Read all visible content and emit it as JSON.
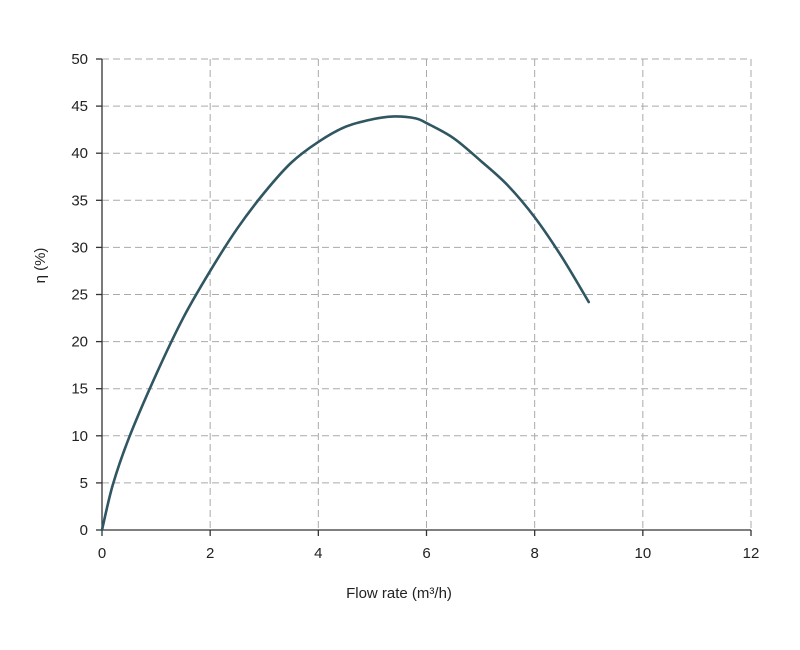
{
  "chart_data": {
    "type": "line",
    "title": "",
    "xlabel": "Flow rate (m³/h)",
    "ylabel": "η (%)",
    "xlim": [
      0,
      12
    ],
    "ylim": [
      0,
      50
    ],
    "xticks": [
      "0",
      "2",
      "4",
      "6",
      "8",
      "10",
      "12"
    ],
    "yticks": [
      "0",
      "5",
      "10",
      "15",
      "20",
      "25",
      "30",
      "35",
      "40",
      "45",
      "50"
    ],
    "grid": true,
    "legend": "none",
    "series": [
      {
        "color": "#2f5661",
        "x": [
          0,
          0.2,
          0.5,
          1,
          1.5,
          2,
          2.5,
          3,
          3.5,
          4,
          4.5,
          5,
          5.4,
          5.8,
          6,
          6.5,
          7,
          7.5,
          8,
          8.5,
          9
        ],
        "y": [
          0,
          4.8,
          9.8,
          16.5,
          22.5,
          27.5,
          32,
          35.8,
          39,
          41.2,
          42.8,
          43.6,
          43.9,
          43.7,
          43.2,
          41.6,
          39.2,
          36.6,
          33.2,
          29.0,
          24.2
        ]
      }
    ]
  }
}
